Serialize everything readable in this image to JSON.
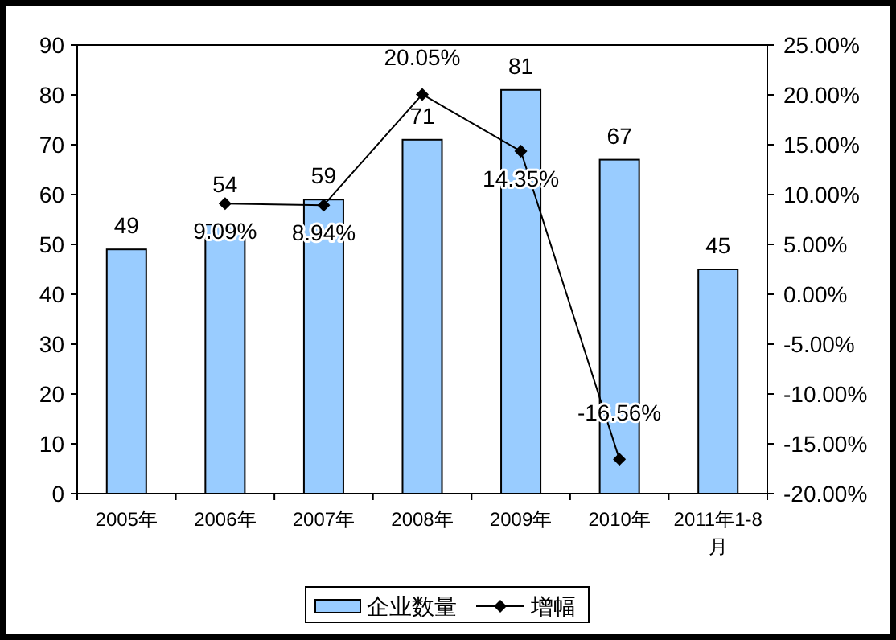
{
  "chart_data": {
    "type": "bar",
    "categories": [
      "2005年",
      "2006年",
      "2007年",
      "2008年",
      "2009年",
      "2010年",
      "2011年1-8月"
    ],
    "series": [
      {
        "name": "企业数量",
        "color": "#99ccff",
        "values": [
          49,
          54,
          59,
          71,
          81,
          67,
          45
        ],
        "data_labels": true
      },
      {
        "name": "增幅",
        "type": "line",
        "axis": "y2",
        "color": "#000000",
        "marker": "diamond",
        "line_style": "solid",
        "values": [
          null,
          9.09,
          8.94,
          20.05,
          14.35,
          -16.56,
          null
        ],
        "value_labels": [
          null,
          "9.09%",
          "8.94%",
          "20.05%",
          "14.35%",
          "-16.56%",
          null
        ]
      }
    ],
    "ylim": [
      0,
      90
    ],
    "yticks": [
      0,
      10,
      20,
      30,
      40,
      50,
      60,
      70,
      80,
      90
    ],
    "y2lim": [
      -20,
      25
    ],
    "y2ticks": [
      {
        "value": -20,
        "label": "-20.00%"
      },
      {
        "value": -15,
        "label": "-15.00%"
      },
      {
        "value": -10,
        "label": "-10.00%"
      },
      {
        "value": -5,
        "label": "-5.00%"
      },
      {
        "value": 0,
        "label": "0.00%"
      },
      {
        "value": 5,
        "label": "5.00%"
      },
      {
        "value": 10,
        "label": "10.00%"
      },
      {
        "value": 15,
        "label": "15.00%"
      },
      {
        "value": 20,
        "label": "20.00%"
      },
      {
        "value": 25,
        "label": "25.00%"
      }
    ],
    "grid": false,
    "legend": "bottom"
  }
}
